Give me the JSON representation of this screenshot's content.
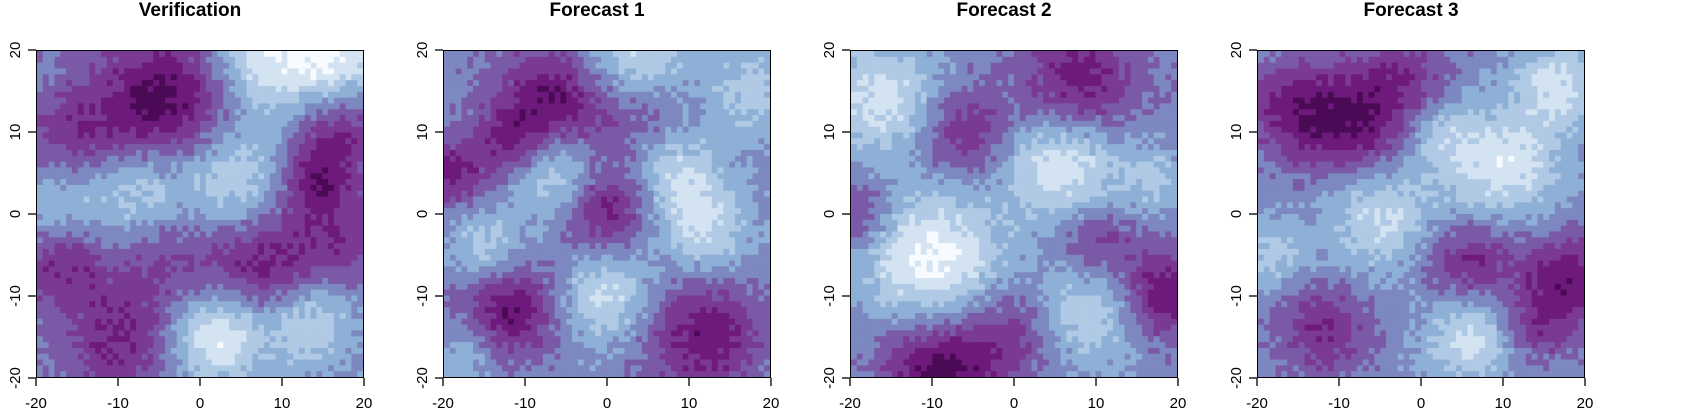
{
  "chart_data": [
    {
      "type": "heatmap",
      "title": "Verification",
      "xlim": [
        -20,
        20
      ],
      "ylim": [
        -20,
        20
      ],
      "x_ticks": [
        "-20",
        "-10",
        "0",
        "10",
        "20"
      ],
      "y_ticks": [
        "-20",
        "-10",
        "0",
        "10",
        "20"
      ],
      "xlabel": "",
      "ylabel": "",
      "color_levels": [
        "#f7fbff",
        "#d4e3f2",
        "#b0c9e4",
        "#8fb0d6",
        "#7d88c0",
        "#7a5aa7",
        "#7a3a92",
        "#6e1a7c",
        "#4a0a55"
      ],
      "blobs": [
        {
          "x": -4,
          "y": 14,
          "v": -3.2,
          "r": 6
        },
        {
          "x": -15,
          "y": 8,
          "v": -2.2,
          "r": 5
        },
        {
          "x": 17,
          "y": 10,
          "v": -2.0,
          "r": 4
        },
        {
          "x": 8,
          "y": 19,
          "v": 2.8,
          "r": 5
        },
        {
          "x": 17,
          "y": 19,
          "v": 2.5,
          "r": 4
        },
        {
          "x": -9,
          "y": 3,
          "v": 2.4,
          "r": 5
        },
        {
          "x": 4,
          "y": 4,
          "v": 2.2,
          "r": 5
        },
        {
          "x": 14,
          "y": 4,
          "v": -2.2,
          "r": 3
        },
        {
          "x": -17,
          "y": -6,
          "v": -2.0,
          "r": 4
        },
        {
          "x": 8,
          "y": -6,
          "v": -2.6,
          "r": 5
        },
        {
          "x": 2,
          "y": -15,
          "v": 3.0,
          "r": 4
        },
        {
          "x": 13,
          "y": -13,
          "v": 2.2,
          "r": 4
        },
        {
          "x": -10,
          "y": -16,
          "v": -2.0,
          "r": 5
        },
        {
          "x": -5,
          "y": -5,
          "v": -1.4,
          "r": 5
        },
        {
          "x": 18,
          "y": -3,
          "v": -1.6,
          "r": 4
        },
        {
          "x": -18,
          "y": 2,
          "v": 1.6,
          "r": 4
        }
      ]
    },
    {
      "type": "heatmap",
      "title": "Forecast 1",
      "xlim": [
        -20,
        20
      ],
      "ylim": [
        -20,
        20
      ],
      "x_ticks": [
        "-20",
        "-10",
        "0",
        "10",
        "20"
      ],
      "y_ticks": [
        "-20",
        "-10",
        "0",
        "10",
        "20"
      ],
      "xlabel": "",
      "ylabel": "",
      "color_levels": [
        "#f7fbff",
        "#d4e3f2",
        "#b0c9e4",
        "#8fb0d6",
        "#7d88c0",
        "#7a5aa7",
        "#7a3a92",
        "#6e1a7c",
        "#4a0a55"
      ],
      "blobs": [
        {
          "x": -6,
          "y": 14,
          "v": -3.0,
          "r": 5
        },
        {
          "x": -12,
          "y": 9,
          "v": -2.0,
          "r": 3
        },
        {
          "x": -19,
          "y": 5,
          "v": -2.2,
          "r": 3
        },
        {
          "x": 3,
          "y": 19,
          "v": 2.4,
          "r": 5
        },
        {
          "x": -6,
          "y": 5,
          "v": 2.4,
          "r": 4
        },
        {
          "x": 8,
          "y": 5,
          "v": 2.2,
          "r": 4
        },
        {
          "x": 0,
          "y": 1,
          "v": -2.6,
          "r": 4
        },
        {
          "x": -12,
          "y": -12,
          "v": -2.8,
          "r": 4
        },
        {
          "x": 12,
          "y": -15,
          "v": -2.6,
          "r": 5
        },
        {
          "x": 0,
          "y": -10,
          "v": 2.2,
          "r": 4
        },
        {
          "x": 12,
          "y": -2,
          "v": 2.0,
          "r": 4
        },
        {
          "x": -15,
          "y": -4,
          "v": 1.8,
          "r": 3
        },
        {
          "x": 18,
          "y": 15,
          "v": 1.6,
          "r": 4
        },
        {
          "x": 5,
          "y": 12,
          "v": -1.4,
          "r": 4
        },
        {
          "x": -17,
          "y": -17,
          "v": 1.2,
          "r": 3
        }
      ]
    },
    {
      "type": "heatmap",
      "title": "Forecast 2",
      "xlim": [
        -20,
        20
      ],
      "ylim": [
        -20,
        20
      ],
      "x_ticks": [
        "-20",
        "-10",
        "0",
        "10",
        "20"
      ],
      "y_ticks": [
        "-20",
        "-10",
        "0",
        "10",
        "20"
      ],
      "xlabel": "",
      "ylabel": "",
      "color_levels": [
        "#f7fbff",
        "#d4e3f2",
        "#b0c9e4",
        "#8fb0d6",
        "#7d88c0",
        "#7a5aa7",
        "#7a3a92",
        "#6e1a7c",
        "#4a0a55"
      ],
      "blobs": [
        {
          "x": -10,
          "y": -6,
          "v": 3.2,
          "r": 6
        },
        {
          "x": -16,
          "y": 14,
          "v": 2.4,
          "r": 5
        },
        {
          "x": 6,
          "y": 6,
          "v": 2.8,
          "r": 5
        },
        {
          "x": 10,
          "y": -11,
          "v": 2.4,
          "r": 5
        },
        {
          "x": -9,
          "y": -19,
          "v": -3.4,
          "r": 5
        },
        {
          "x": 18,
          "y": -10,
          "v": -3.0,
          "r": 4
        },
        {
          "x": 8,
          "y": 16,
          "v": -2.6,
          "r": 5
        },
        {
          "x": 10,
          "y": -4,
          "v": -2.0,
          "r": 4
        },
        {
          "x": -6,
          "y": 10,
          "v": -2.0,
          "r": 4
        },
        {
          "x": 0,
          "y": -14,
          "v": -1.6,
          "r": 4
        },
        {
          "x": -19,
          "y": 0,
          "v": -1.6,
          "r": 3
        },
        {
          "x": 17,
          "y": 4,
          "v": 1.4,
          "r": 3
        }
      ]
    },
    {
      "type": "heatmap",
      "title": "Forecast 3",
      "xlim": [
        -20,
        20
      ],
      "ylim": [
        -20,
        20
      ],
      "x_ticks": [
        "-20",
        "-10",
        "0",
        "10",
        "20"
      ],
      "y_ticks": [
        "-20",
        "-10",
        "0",
        "10",
        "20"
      ],
      "xlabel": "",
      "ylabel": "",
      "color_levels": [
        "#f7fbff",
        "#d4e3f2",
        "#b0c9e4",
        "#8fb0d6",
        "#7d88c0",
        "#7a5aa7",
        "#7a3a92",
        "#6e1a7c",
        "#4a0a55"
      ],
      "blobs": [
        {
          "x": -8,
          "y": 11,
          "v": -2.8,
          "r": 5
        },
        {
          "x": -16,
          "y": 13,
          "v": -2.0,
          "r": 4
        },
        {
          "x": 18,
          "y": -8,
          "v": -2.6,
          "r": 4
        },
        {
          "x": 6,
          "y": -6,
          "v": -2.2,
          "r": 4
        },
        {
          "x": -12,
          "y": -14,
          "v": -2.0,
          "r": 4
        },
        {
          "x": 10,
          "y": 6,
          "v": 2.6,
          "r": 5
        },
        {
          "x": -5,
          "y": 0,
          "v": 2.2,
          "r": 5
        },
        {
          "x": 6,
          "y": -15,
          "v": 2.4,
          "r": 4
        },
        {
          "x": 17,
          "y": 16,
          "v": 2.2,
          "r": 4
        },
        {
          "x": -18,
          "y": -5,
          "v": 1.6,
          "r": 3
        },
        {
          "x": 14,
          "y": -14,
          "v": -1.6,
          "r": 3
        },
        {
          "x": -2,
          "y": 17,
          "v": -1.4,
          "r": 4
        },
        {
          "x": 2,
          "y": 10,
          "v": 1.4,
          "r": 3
        }
      ]
    }
  ]
}
